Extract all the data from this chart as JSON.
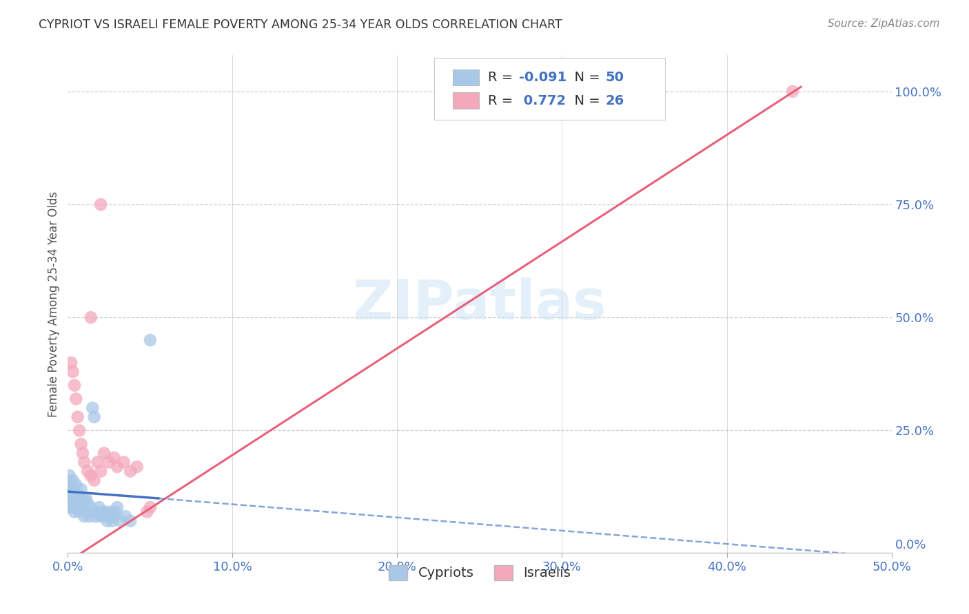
{
  "title": "CYPRIOT VS ISRAELI FEMALE POVERTY AMONG 25-34 YEAR OLDS CORRELATION CHART",
  "source": "Source: ZipAtlas.com",
  "ylabel": "Female Poverty Among 25-34 Year Olds",
  "xlim": [
    0.0,
    0.5
  ],
  "ylim": [
    -0.02,
    1.08
  ],
  "xtick_values": [
    0.0,
    0.1,
    0.2,
    0.3,
    0.4,
    0.5
  ],
  "xtick_labels": [
    "0.0%",
    "10.0%",
    "20.0%",
    "30.0%",
    "40.0%",
    "50.0%"
  ],
  "ytick_values": [
    0.0,
    0.25,
    0.5,
    0.75,
    1.0
  ],
  "ytick_labels": [
    "0.0%",
    "25.0%",
    "50.0%",
    "75.0%",
    "100.0%"
  ],
  "cypriot_color": "#a8c8e8",
  "israeli_color": "#f4a8bc",
  "cypriot_line_color": "#4472c4",
  "israeli_line_color": "#e8607a",
  "cypriot_R": -0.091,
  "cypriot_N": 50,
  "israeli_R": 0.772,
  "israeli_N": 26,
  "watermark_text": "ZIPatlas",
  "background_color": "#ffffff",
  "grid_color": "#cccccc",
  "axis_label_color": "#4472c4",
  "title_color": "#333333",
  "source_color": "#888888",
  "cypriot_x": [
    0.001,
    0.001,
    0.001,
    0.001,
    0.002,
    0.002,
    0.002,
    0.003,
    0.003,
    0.003,
    0.004,
    0.004,
    0.005,
    0.005,
    0.005,
    0.006,
    0.006,
    0.007,
    0.007,
    0.008,
    0.008,
    0.009,
    0.009,
    0.01,
    0.01,
    0.011,
    0.012,
    0.012,
    0.013,
    0.014,
    0.015,
    0.016,
    0.017,
    0.018,
    0.019,
    0.02,
    0.021,
    0.022,
    0.023,
    0.024,
    0.025,
    0.026,
    0.027,
    0.028,
    0.029,
    0.03,
    0.032,
    0.035,
    0.038,
    0.05
  ],
  "cypriot_y": [
    0.1,
    0.12,
    0.08,
    0.15,
    0.09,
    0.11,
    0.13,
    0.08,
    0.1,
    0.14,
    0.07,
    0.12,
    0.1,
    0.08,
    0.13,
    0.09,
    0.11,
    0.1,
    0.07,
    0.09,
    0.12,
    0.08,
    0.1,
    0.08,
    0.06,
    0.1,
    0.07,
    0.09,
    0.06,
    0.08,
    0.3,
    0.28,
    0.06,
    0.07,
    0.08,
    0.06,
    0.07,
    0.06,
    0.07,
    0.05,
    0.06,
    0.07,
    0.05,
    0.06,
    0.07,
    0.08,
    0.05,
    0.06,
    0.05,
    0.45
  ],
  "israeli_x": [
    0.002,
    0.003,
    0.004,
    0.005,
    0.006,
    0.007,
    0.008,
    0.009,
    0.01,
    0.012,
    0.014,
    0.016,
    0.018,
    0.02,
    0.022,
    0.025,
    0.028,
    0.03,
    0.034,
    0.038,
    0.042,
    0.048,
    0.05,
    0.014,
    0.02,
    0.44
  ],
  "israeli_y": [
    0.4,
    0.38,
    0.35,
    0.32,
    0.28,
    0.25,
    0.22,
    0.2,
    0.18,
    0.16,
    0.15,
    0.14,
    0.18,
    0.16,
    0.2,
    0.18,
    0.19,
    0.17,
    0.18,
    0.16,
    0.17,
    0.07,
    0.08,
    0.5,
    0.75,
    1.0
  ],
  "isr_line_x0": 0.0,
  "isr_line_y0": -0.04,
  "isr_line_x1": 0.445,
  "isr_line_y1": 1.01,
  "cyp_line_solid_x0": 0.0,
  "cyp_line_solid_y0": 0.115,
  "cyp_line_solid_x1": 0.055,
  "cyp_line_solid_y1": 0.1,
  "cyp_line_dash_x0": 0.055,
  "cyp_line_dash_y0": 0.1,
  "cyp_line_dash_x1": 0.5,
  "cyp_line_dash_y1": -0.03
}
